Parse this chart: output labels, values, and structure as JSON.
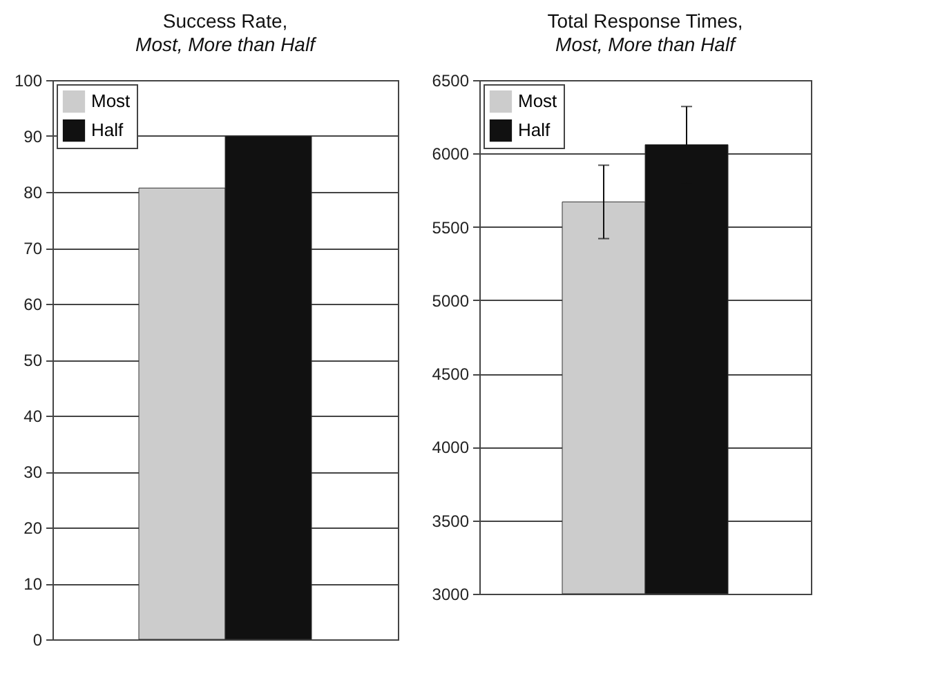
{
  "chart_data": [
    {
      "type": "bar",
      "title": "Success Rate,",
      "subtitle": "Most, More than Half",
      "categories": [
        null
      ],
      "series": [
        {
          "name": "Most",
          "color": "#cccccc",
          "values": [
            80.7
          ]
        },
        {
          "name": "Half",
          "color": "#111111",
          "values": [
            90
          ]
        }
      ],
      "ylim": [
        0,
        100
      ],
      "yticks": [
        0,
        10,
        20,
        30,
        40,
        50,
        60,
        70,
        80,
        90,
        100
      ],
      "grid": "y",
      "legend": "top left"
    },
    {
      "type": "bar",
      "title": "Total Response Times,",
      "subtitle": "Most, More than Half",
      "categories": [
        null
      ],
      "series": [
        {
          "name": "Most",
          "color": "#cccccc",
          "values": [
            5670
          ],
          "errors": [
            250
          ]
        },
        {
          "name": "Half",
          "color": "#111111",
          "values": [
            6060
          ],
          "errors": [
            260
          ]
        }
      ],
      "ylim": [
        3000,
        6500
      ],
      "yticks": [
        3000,
        3500,
        4000,
        4500,
        5000,
        5500,
        6000,
        6500
      ],
      "grid": "y",
      "legend": "top left"
    }
  ]
}
